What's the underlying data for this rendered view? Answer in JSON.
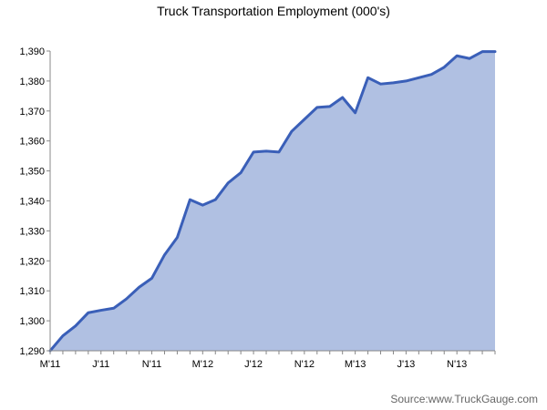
{
  "chart_data": {
    "type": "area",
    "title": "Truck Transportation Employment (000's)",
    "xlabel": "",
    "ylabel": "",
    "ylim": [
      1290,
      1390
    ],
    "yticks": [
      1290,
      1300,
      1310,
      1320,
      1330,
      1340,
      1350,
      1360,
      1370,
      1380,
      1390
    ],
    "ytick_labels": [
      "1,290",
      "1,300",
      "1,310",
      "1,320",
      "1,330",
      "1,340",
      "1,350",
      "1,360",
      "1,370",
      "1,380",
      "1,390"
    ],
    "x_start": "2011-03",
    "x_end": "2014-02",
    "xtick_labels": [
      {
        "label": "M'11",
        "month": "2011-03"
      },
      {
        "label": "J'11",
        "month": "2011-07"
      },
      {
        "label": "N'11",
        "month": "2011-11"
      },
      {
        "label": "M'12",
        "month": "2012-03"
      },
      {
        "label": "J'12",
        "month": "2012-07"
      },
      {
        "label": "N'12",
        "month": "2012-11"
      },
      {
        "label": "M'13",
        "month": "2013-03"
      },
      {
        "label": "J'13",
        "month": "2013-07"
      },
      {
        "label": "N'13",
        "month": "2013-11"
      }
    ],
    "series": [
      {
        "months": [
          "2011-03",
          "2011-04",
          "2011-05",
          "2011-06",
          "2011-07",
          "2011-08",
          "2011-09",
          "2011-10",
          "2011-11",
          "2011-12",
          "2012-01",
          "2012-02",
          "2012-03",
          "2012-04",
          "2012-05",
          "2012-06",
          "2012-07",
          "2012-08",
          "2012-09",
          "2012-10",
          "2012-11",
          "2012-12",
          "2013-01",
          "2013-02",
          "2013-03",
          "2013-04",
          "2013-05",
          "2013-06",
          "2013-07",
          "2013-08",
          "2013-09",
          "2013-10",
          "2013-11",
          "2013-12",
          "2014-01",
          "2014-02"
        ],
        "values": [
          1290.0,
          1295.0,
          1298.3,
          1302.7,
          1303.5,
          1304.2,
          1307.3,
          1311.2,
          1314.2,
          1322.0,
          1327.8,
          1340.4,
          1338.6,
          1340.4,
          1346.0,
          1349.4,
          1356.3,
          1356.6,
          1356.3,
          1363.2,
          1367.2,
          1371.2,
          1371.5,
          1374.5,
          1369.4,
          1381.1,
          1379.0,
          1379.4,
          1380.0,
          1381.1,
          1382.2,
          1384.6,
          1388.4,
          1387.5,
          1389.8,
          1389.8
        ],
        "line_color": "#3a5fb8",
        "fill_color": "#b0c0e2"
      }
    ],
    "grid": false,
    "legend": "none"
  },
  "source_text": "Source:www.TruckGauge.com"
}
